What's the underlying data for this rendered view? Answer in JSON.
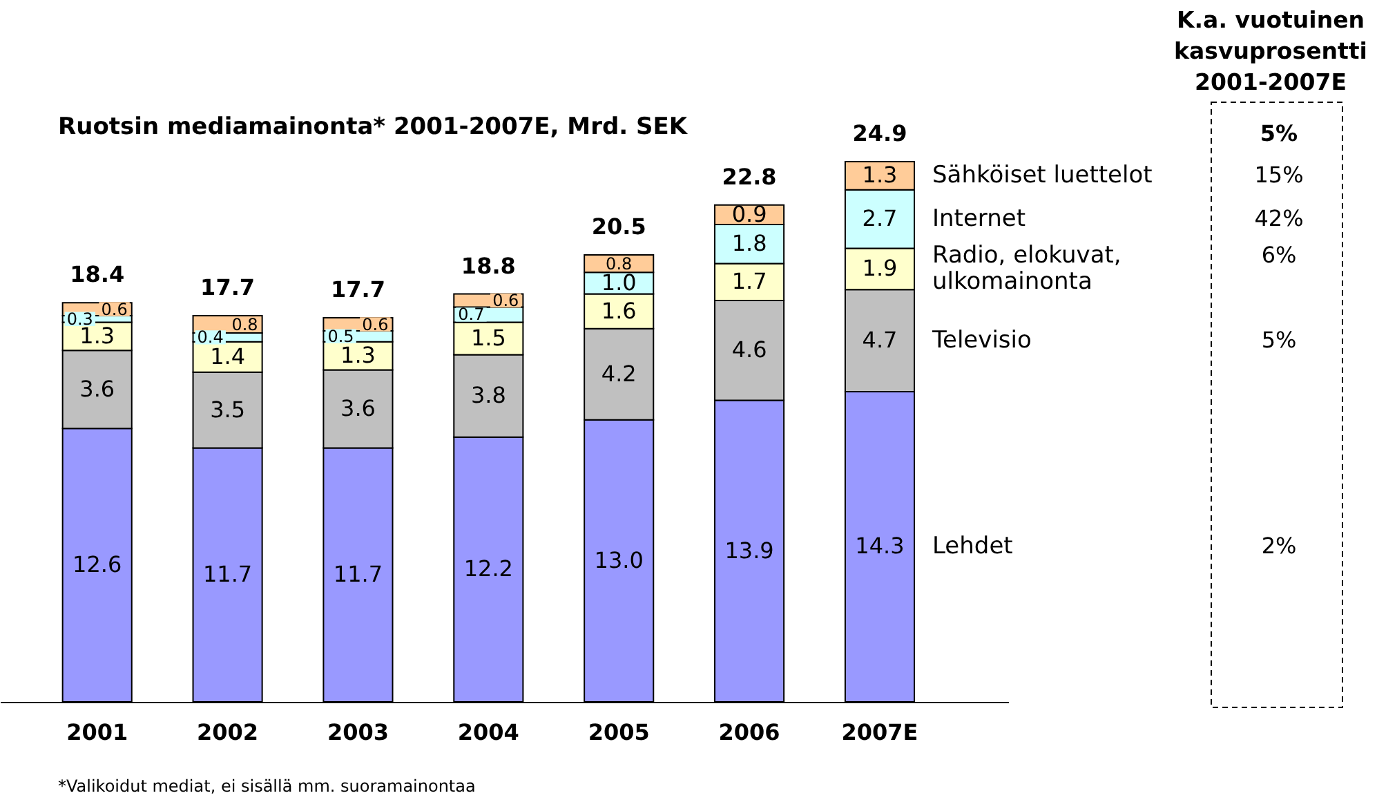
{
  "chart_data": [
    {
      "type": "bar",
      "title": "Ruotsin mediamainonta* 2001-2007E, Mrd. SEK",
      "categories": [
        "2001",
        "2002",
        "2003",
        "2004",
        "2005",
        "2006",
        "2007E"
      ],
      "stacked": true,
      "series": [
        {
          "name": "Lehdet",
          "color": "#9999ff",
          "values": [
            12.6,
            11.7,
            11.7,
            12.2,
            13.0,
            13.9,
            14.3
          ],
          "value_labels": [
            "12.6",
            "11.7",
            "11.7",
            "12.2",
            "13.0",
            "13.9",
            "14.3"
          ]
        },
        {
          "name": "Televisio",
          "color": "#c0c0c0",
          "values": [
            3.6,
            3.5,
            3.6,
            3.8,
            4.2,
            4.6,
            4.7
          ],
          "value_labels": [
            "3.6",
            "3.5",
            "3.6",
            "3.8",
            "4.2",
            "4.6",
            "4.7"
          ]
        },
        {
          "name": "Radio, elokuvat, ulkomainonta",
          "color": "#ffffcc",
          "values": [
            1.3,
            1.4,
            1.3,
            1.5,
            1.6,
            1.7,
            1.9
          ],
          "value_labels": [
            "1.3",
            "1.4",
            "1.3",
            "1.5",
            "1.6",
            "1.7",
            "1.9"
          ]
        },
        {
          "name": "Internet",
          "color": "#ccffff",
          "values": [
            0.3,
            0.4,
            0.5,
            0.7,
            1.0,
            1.8,
            2.7
          ],
          "value_labels": [
            "0.3",
            "0.4",
            "0.5",
            "0.7",
            "1.0",
            "1.8",
            "2.7"
          ]
        },
        {
          "name": "Sähköiset luettelot",
          "color": "#ffcc99",
          "values": [
            0.6,
            0.8,
            0.6,
            0.6,
            0.8,
            0.9,
            1.3
          ],
          "value_labels": [
            "0.6",
            "0.8",
            "0.6",
            "0.6",
            "0.8",
            "0.9",
            "1.3"
          ]
        }
      ],
      "totals": [
        "18.4",
        "17.7",
        "17.7",
        "18.8",
        "20.5",
        "22.8",
        "24.9"
      ],
      "annotations": [
        "*Valikoidut mediat, ei sisällä mm. suoramainontaa"
      ]
    },
    {
      "type": "other",
      "title": "K.a. vuotuinen kasvuprosentti 2001-2007E",
      "annotations": [
        "5%",
        "15%",
        "42%",
        "6%",
        "5%",
        "2%"
      ]
    }
  ]
}
